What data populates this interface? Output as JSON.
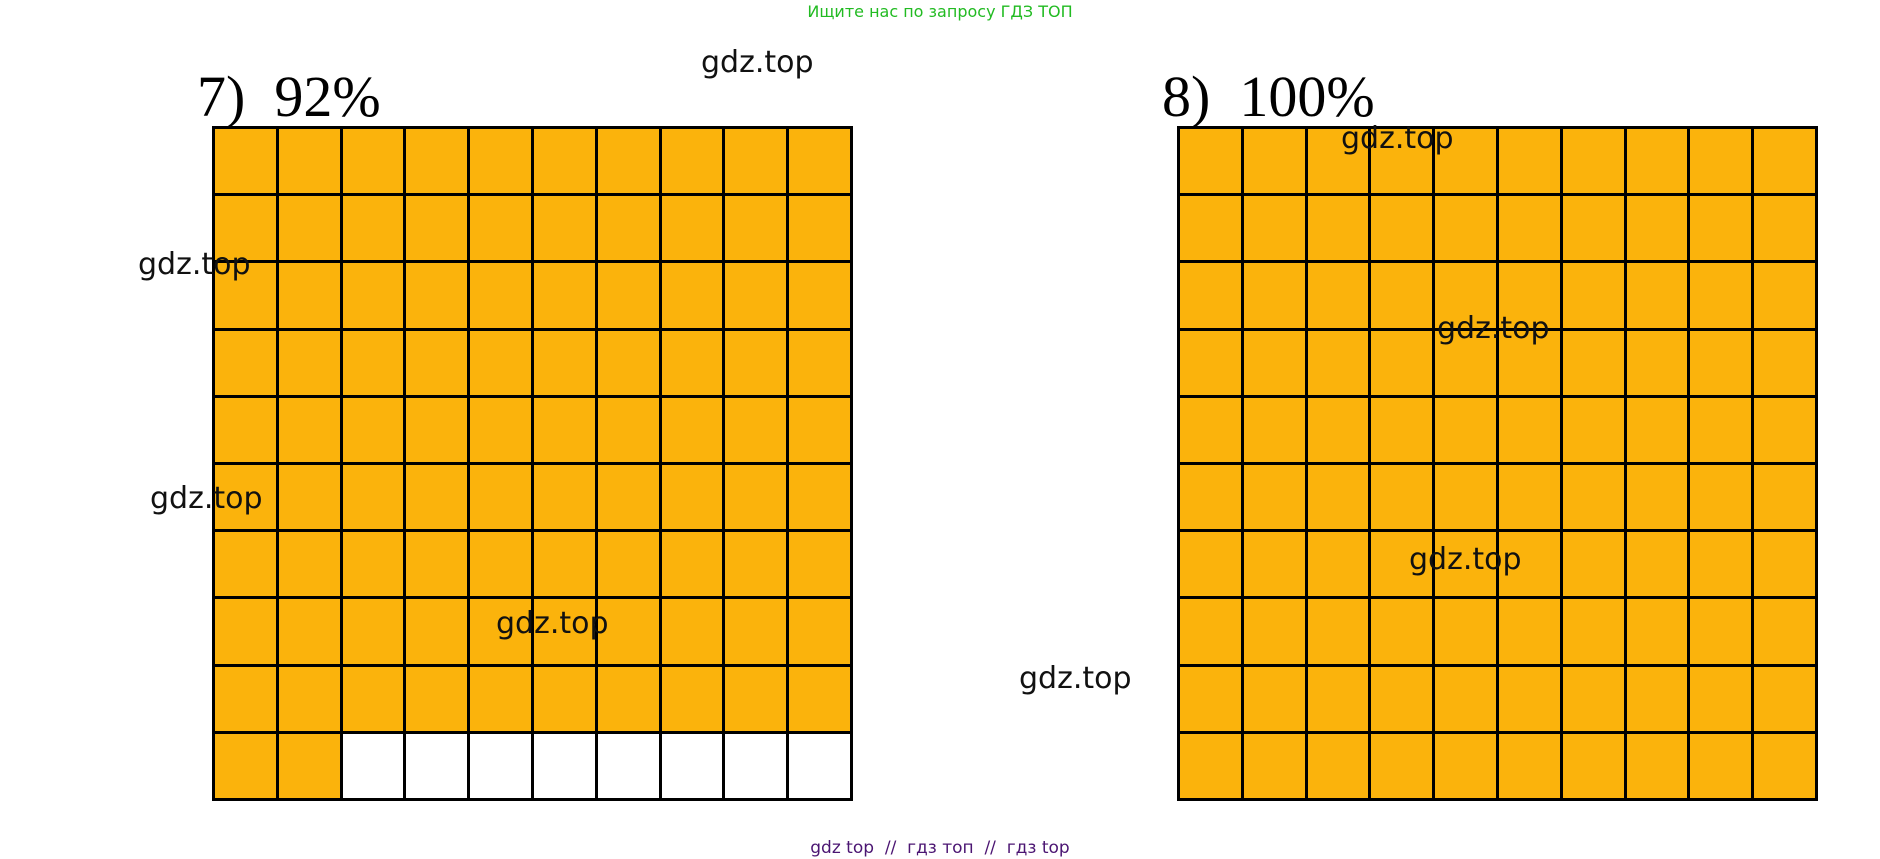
{
  "banner": "Ищите нас по запросу ГДЗ ТОП",
  "problems": [
    {
      "title": "7)  92%",
      "shaded_count": 92,
      "total": 100
    },
    {
      "title": "8)  100%",
      "shaded_count": 100,
      "total": 100
    }
  ],
  "watermark_text": "gdz.top",
  "footer": "gdz top  //  гдз топ  //  гдз top",
  "colors": {
    "shaded": "#fbb30c",
    "empty": "#ffffff",
    "lines": "#000000"
  }
}
